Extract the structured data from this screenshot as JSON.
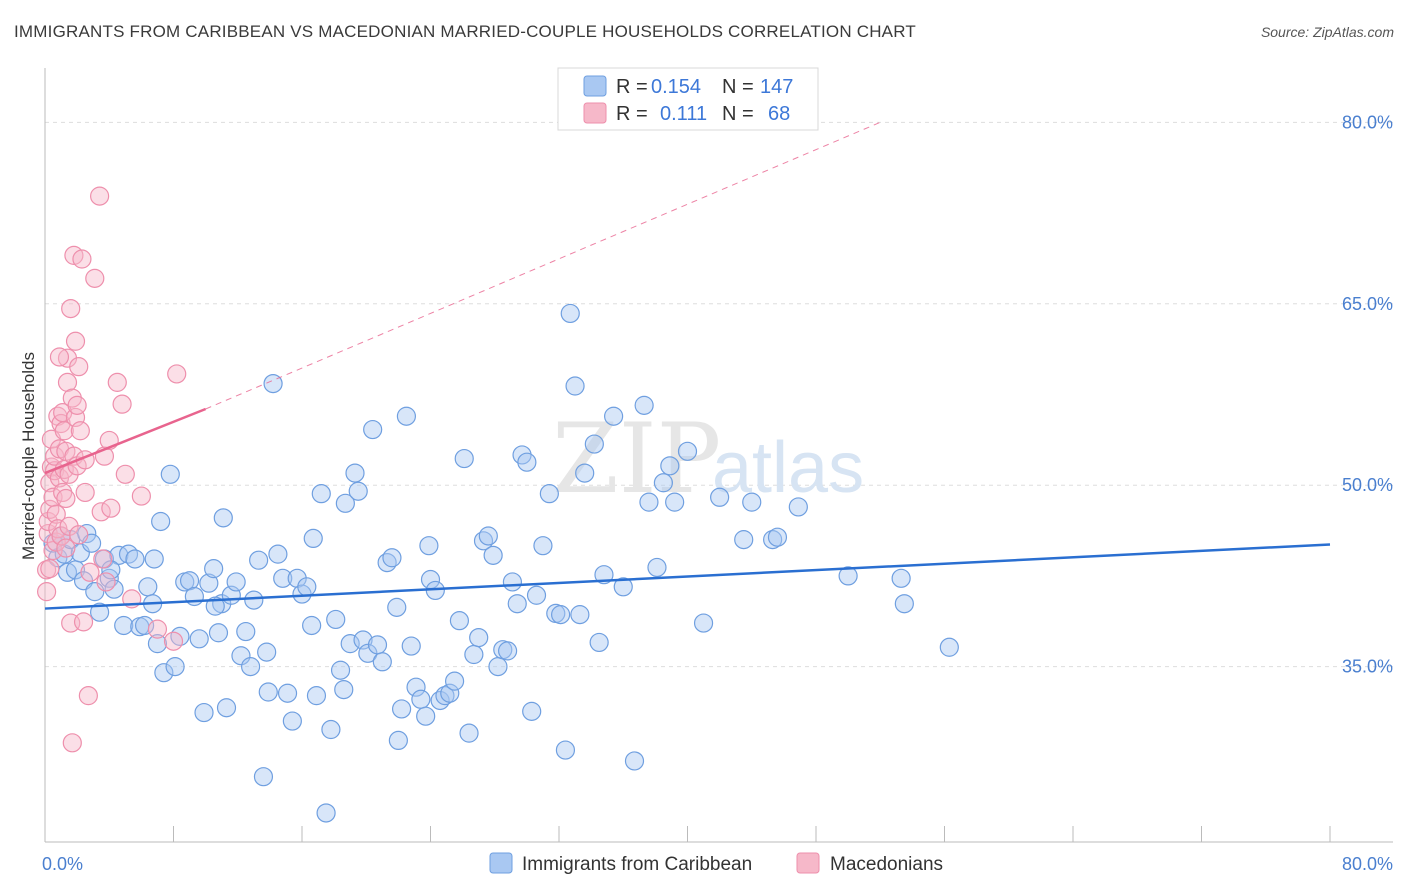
{
  "header": {
    "title": "IMMIGRANTS FROM CARIBBEAN VS MACEDONIAN MARRIED-COUPLE HOUSEHOLDS CORRELATION CHART",
    "source": "Source: ZipAtlas.com"
  },
  "watermark": {
    "part1": "ZIP",
    "part2": "atlas"
  },
  "legend": {
    "rows": [
      {
        "r_label": "R =",
        "r_value": "0.154",
        "n_label": "N =",
        "n_value": "147",
        "color": "#a9c8f2"
      },
      {
        "r_label": "R =",
        "r_value": "0.111",
        "n_label": "N =",
        "n_value": "68",
        "color": "#f6b8c9"
      }
    ]
  },
  "bottom_legend": [
    {
      "label": "Immigrants from Caribbean",
      "color": "#a9c8f2"
    },
    {
      "label": "Macedonians",
      "color": "#f6b8c9"
    }
  ],
  "colors": {
    "blue_fill": "#a9c8f2",
    "blue_stroke": "#6f9fe0",
    "blue_line": "#2a6fd1",
    "pink_fill": "#f6b8c9",
    "pink_stroke": "#ee8fac",
    "pink_line": "#e8648e",
    "grid": "#dddddd",
    "axis_text": "#4a7fcf"
  },
  "chart_data": {
    "type": "scatter",
    "title": "IMMIGRANTS FROM CARIBBEAN VS MACEDONIAN MARRIED-COUPLE HOUSEHOLDS CORRELATION CHART",
    "xlabel": "",
    "ylabel": "Married-couple Households",
    "xlim": [
      0,
      80
    ],
    "ylim": [
      20.5,
      83.5
    ],
    "x_tick_labels": [
      "0.0%",
      "80.0%"
    ],
    "y_ticks": [
      35,
      50,
      65,
      80
    ],
    "y_tick_labels": [
      "35.0%",
      "50.0%",
      "65.0%",
      "80.0%"
    ],
    "grid": true,
    "legend_position": "top-center",
    "series": [
      {
        "name": "Immigrants from Caribbean",
        "R": 0.154,
        "N": 147,
        "trend": {
          "x0": 0,
          "y0": 39.8,
          "x1": 80,
          "y1": 45.1,
          "style": "solid"
        },
        "points": [
          [
            0.5,
            45.2
          ],
          [
            0.8,
            44.0
          ],
          [
            1.0,
            45.8
          ],
          [
            1.2,
            44.3
          ],
          [
            1.4,
            42.8
          ],
          [
            1.6,
            45.5
          ],
          [
            1.9,
            43.0
          ],
          [
            2.2,
            44.4
          ],
          [
            2.4,
            42.1
          ],
          [
            2.6,
            46.0
          ],
          [
            2.9,
            45.2
          ],
          [
            3.1,
            41.2
          ],
          [
            3.4,
            39.5
          ],
          [
            3.7,
            43.9
          ],
          [
            4.0,
            42.3
          ],
          [
            4.3,
            41.4
          ],
          [
            4.6,
            44.2
          ],
          [
            4.9,
            38.4
          ],
          [
            5.2,
            44.3
          ],
          [
            5.6,
            43.9
          ],
          [
            5.9,
            38.3
          ],
          [
            6.2,
            38.4
          ],
          [
            6.4,
            41.6
          ],
          [
            6.7,
            40.2
          ],
          [
            7.0,
            36.9
          ],
          [
            7.2,
            47.0
          ],
          [
            7.4,
            34.5
          ],
          [
            7.8,
            50.9
          ],
          [
            8.1,
            35.0
          ],
          [
            8.4,
            37.5
          ],
          [
            8.7,
            42.0
          ],
          [
            9.0,
            42.1
          ],
          [
            9.3,
            40.8
          ],
          [
            9.6,
            37.3
          ],
          [
            9.9,
            31.2
          ],
          [
            10.2,
            41.9
          ],
          [
            10.5,
            43.1
          ],
          [
            10.8,
            37.8
          ],
          [
            11.0,
            40.2
          ],
          [
            11.3,
            31.6
          ],
          [
            11.6,
            40.9
          ],
          [
            11.9,
            42.0
          ],
          [
            12.2,
            35.9
          ],
          [
            12.5,
            37.9
          ],
          [
            12.8,
            35.0
          ],
          [
            13.0,
            40.5
          ],
          [
            13.3,
            43.8
          ],
          [
            13.6,
            25.9
          ],
          [
            13.9,
            32.9
          ],
          [
            14.2,
            58.4
          ],
          [
            14.5,
            44.3
          ],
          [
            14.8,
            42.3
          ],
          [
            15.1,
            32.8
          ],
          [
            15.4,
            30.5
          ],
          [
            15.7,
            42.3
          ],
          [
            16.0,
            41.0
          ],
          [
            16.3,
            41.6
          ],
          [
            16.6,
            38.4
          ],
          [
            16.9,
            32.6
          ],
          [
            17.2,
            49.3
          ],
          [
            17.5,
            22.9
          ],
          [
            17.8,
            29.8
          ],
          [
            18.1,
            38.9
          ],
          [
            18.4,
            34.7
          ],
          [
            18.7,
            48.5
          ],
          [
            19.0,
            36.9
          ],
          [
            19.3,
            51.0
          ],
          [
            19.5,
            49.5
          ],
          [
            19.8,
            37.2
          ],
          [
            20.1,
            36.1
          ],
          [
            20.4,
            54.6
          ],
          [
            20.7,
            36.8
          ],
          [
            21.0,
            35.4
          ],
          [
            21.3,
            43.6
          ],
          [
            21.6,
            44.0
          ],
          [
            21.9,
            39.9
          ],
          [
            22.2,
            31.5
          ],
          [
            22.5,
            55.7
          ],
          [
            22.8,
            36.7
          ],
          [
            23.1,
            33.3
          ],
          [
            23.4,
            32.3
          ],
          [
            23.7,
            30.9
          ],
          [
            24.0,
            42.2
          ],
          [
            24.3,
            41.3
          ],
          [
            24.6,
            32.2
          ],
          [
            24.9,
            32.6
          ],
          [
            25.2,
            32.8
          ],
          [
            25.5,
            33.8
          ],
          [
            25.8,
            38.8
          ],
          [
            26.1,
            52.2
          ],
          [
            26.4,
            29.5
          ],
          [
            26.7,
            36.0
          ],
          [
            27.0,
            37.4
          ],
          [
            27.3,
            45.4
          ],
          [
            27.6,
            45.8
          ],
          [
            27.9,
            44.2
          ],
          [
            28.2,
            35.0
          ],
          [
            28.5,
            36.4
          ],
          [
            28.8,
            36.3
          ],
          [
            29.1,
            42.0
          ],
          [
            29.4,
            40.2
          ],
          [
            29.7,
            52.5
          ],
          [
            30.0,
            51.9
          ],
          [
            30.3,
            31.3
          ],
          [
            30.6,
            40.9
          ],
          [
            31.0,
            45.0
          ],
          [
            31.4,
            49.3
          ],
          [
            31.8,
            39.4
          ],
          [
            32.1,
            39.3
          ],
          [
            32.4,
            28.1
          ],
          [
            32.7,
            64.2
          ],
          [
            33.0,
            58.2
          ],
          [
            33.3,
            39.3
          ],
          [
            33.6,
            51.0
          ],
          [
            34.2,
            53.4
          ],
          [
            34.8,
            42.6
          ],
          [
            35.4,
            55.7
          ],
          [
            36.0,
            41.6
          ],
          [
            36.7,
            27.2
          ],
          [
            37.3,
            56.6
          ],
          [
            37.6,
            48.6
          ],
          [
            38.1,
            43.2
          ],
          [
            38.5,
            50.2
          ],
          [
            38.9,
            51.6
          ],
          [
            39.2,
            48.6
          ],
          [
            40.0,
            52.8
          ],
          [
            41.0,
            38.6
          ],
          [
            42.0,
            49.0
          ],
          [
            43.5,
            45.5
          ],
          [
            44.0,
            48.6
          ],
          [
            45.3,
            45.5
          ],
          [
            45.6,
            45.7
          ],
          [
            46.9,
            48.2
          ],
          [
            50.0,
            42.5
          ],
          [
            53.3,
            42.3
          ],
          [
            53.5,
            40.2
          ],
          [
            56.3,
            36.6
          ],
          [
            4.1,
            43.0
          ],
          [
            11.1,
            47.3
          ],
          [
            6.8,
            43.9
          ],
          [
            10.6,
            40.0
          ],
          [
            13.8,
            36.2
          ],
          [
            18.6,
            33.1
          ],
          [
            23.9,
            45.0
          ],
          [
            34.5,
            37.0
          ],
          [
            16.7,
            45.6
          ],
          [
            22.0,
            28.9
          ]
        ]
      },
      {
        "name": "Macedonians",
        "R": 0.111,
        "N": 68,
        "trend": {
          "x0": 0,
          "y0": 51.0,
          "x1": 10,
          "y1": 56.3,
          "style": "solid",
          "extended_to": [
            52,
            80.0
          ]
        },
        "points": [
          [
            0.1,
            41.2
          ],
          [
            0.1,
            43.0
          ],
          [
            0.2,
            46.0
          ],
          [
            0.2,
            47.0
          ],
          [
            0.3,
            48.0
          ],
          [
            0.3,
            50.2
          ],
          [
            0.4,
            51.5
          ],
          [
            0.4,
            53.8
          ],
          [
            0.5,
            44.6
          ],
          [
            0.5,
            49.0
          ],
          [
            0.6,
            51.2
          ],
          [
            0.6,
            52.4
          ],
          [
            0.7,
            45.3
          ],
          [
            0.7,
            47.6
          ],
          [
            0.8,
            55.7
          ],
          [
            0.8,
            46.4
          ],
          [
            0.9,
            50.6
          ],
          [
            0.9,
            53.0
          ],
          [
            1.0,
            45.8
          ],
          [
            1.0,
            55.1
          ],
          [
            1.1,
            49.4
          ],
          [
            1.1,
            56.0
          ],
          [
            1.2,
            51.3
          ],
          [
            1.2,
            54.5
          ],
          [
            1.3,
            52.8
          ],
          [
            1.3,
            44.8
          ],
          [
            1.4,
            58.5
          ],
          [
            1.4,
            60.5
          ],
          [
            1.5,
            50.9
          ],
          [
            1.5,
            46.6
          ],
          [
            1.6,
            64.6
          ],
          [
            1.6,
            38.6
          ],
          [
            1.7,
            57.2
          ],
          [
            1.7,
            28.7
          ],
          [
            1.8,
            69.0
          ],
          [
            1.8,
            52.4
          ],
          [
            1.9,
            61.9
          ],
          [
            1.9,
            55.6
          ],
          [
            2.0,
            51.6
          ],
          [
            2.0,
            56.6
          ],
          [
            2.1,
            45.9
          ],
          [
            2.1,
            59.8
          ],
          [
            2.2,
            54.5
          ],
          [
            2.3,
            68.7
          ],
          [
            2.4,
            38.7
          ],
          [
            2.5,
            49.4
          ],
          [
            2.5,
            52.1
          ],
          [
            2.7,
            32.6
          ],
          [
            2.8,
            42.8
          ],
          [
            3.1,
            67.1
          ],
          [
            3.4,
            73.9
          ],
          [
            3.5,
            47.8
          ],
          [
            3.6,
            43.9
          ],
          [
            3.7,
            52.4
          ],
          [
            3.8,
            42.0
          ],
          [
            4.0,
            53.7
          ],
          [
            4.1,
            48.1
          ],
          [
            4.5,
            58.5
          ],
          [
            4.8,
            56.7
          ],
          [
            5.0,
            50.9
          ],
          [
            5.4,
            40.6
          ],
          [
            6.0,
            49.1
          ],
          [
            7.0,
            38.1
          ],
          [
            8.2,
            59.2
          ],
          [
            0.3,
            43.1
          ],
          [
            0.9,
            60.6
          ],
          [
            1.3,
            48.9
          ],
          [
            8.0,
            37.1
          ]
        ]
      }
    ]
  }
}
